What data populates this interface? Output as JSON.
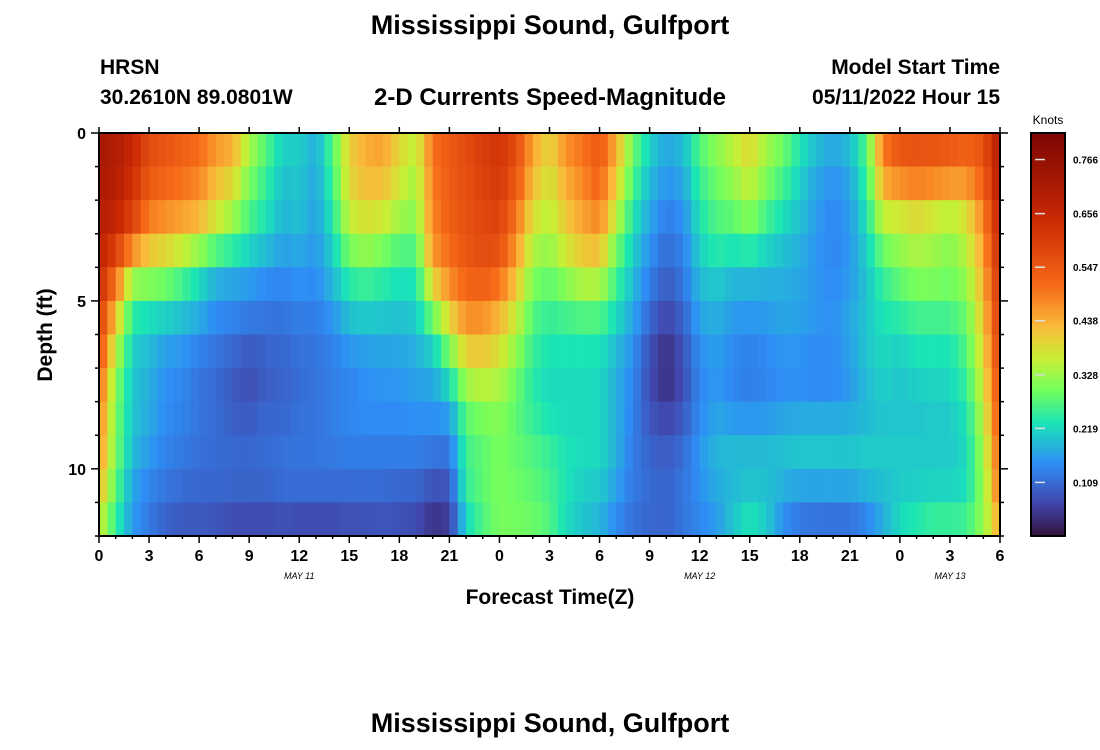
{
  "header": {
    "title": "Mississippi Sound, Gulfport",
    "station_code": "HRSN",
    "station_coords": "30.2610N  89.0801W",
    "subtitle": "2-D Currents Speed-Magnitude",
    "model_label": "Model Start Time",
    "model_time": "05/11/2022 Hour 15",
    "bottom_title": "Mississippi Sound, Gulfport"
  },
  "chart_data": {
    "type": "heatmap",
    "xlabel": "Forecast Time(Z)",
    "ylabel": "Depth (ft)",
    "x_tick_labels": [
      "0",
      "3",
      "6",
      "9",
      "12",
      "15",
      "18",
      "21",
      "0",
      "3",
      "6",
      "9",
      "12",
      "15",
      "18",
      "21",
      "0",
      "3",
      "6"
    ],
    "date_labels": [
      "MAY 11",
      "MAY 12",
      "MAY 13"
    ],
    "y_ticks": [
      0,
      5,
      10
    ],
    "ylim": [
      0,
      12
    ],
    "x_range_hours": [
      0,
      54
    ],
    "colorbar": {
      "label": "Knots",
      "ticks": [
        0.766,
        0.656,
        0.547,
        0.438,
        0.328,
        0.219,
        0.109
      ],
      "range": [
        0.0,
        0.82
      ]
    },
    "hours": [
      0,
      1,
      2,
      3,
      4,
      5,
      6,
      7,
      8,
      9,
      10,
      11,
      12,
      13,
      14,
      15,
      16,
      17,
      18,
      19,
      20,
      21,
      22,
      23,
      24,
      25,
      26,
      27,
      28,
      29,
      30,
      31,
      32,
      33,
      34,
      35,
      36,
      37,
      38,
      39,
      40,
      41,
      42,
      43,
      44,
      45,
      46,
      47,
      48,
      49,
      50,
      51,
      52,
      53,
      54
    ],
    "depths": [
      0,
      1,
      2,
      3,
      4,
      5,
      6,
      7,
      8,
      9,
      10,
      11,
      12
    ],
    "speed_knots": [
      [
        0.72,
        0.7,
        0.66,
        0.58,
        0.56,
        0.54,
        0.52,
        0.48,
        0.45,
        0.35,
        0.28,
        0.22,
        0.22,
        0.18,
        0.28,
        0.4,
        0.44,
        0.46,
        0.4,
        0.36,
        0.5,
        0.55,
        0.58,
        0.6,
        0.62,
        0.58,
        0.45,
        0.4,
        0.48,
        0.5,
        0.55,
        0.45,
        0.3,
        0.22,
        0.18,
        0.2,
        0.28,
        0.32,
        0.36,
        0.4,
        0.34,
        0.3,
        0.24,
        0.2,
        0.18,
        0.2,
        0.28,
        0.5,
        0.56,
        0.56,
        0.55,
        0.54,
        0.53,
        0.56,
        0.7
      ],
      [
        0.72,
        0.7,
        0.64,
        0.56,
        0.54,
        0.52,
        0.5,
        0.44,
        0.42,
        0.32,
        0.26,
        0.2,
        0.2,
        0.17,
        0.26,
        0.4,
        0.44,
        0.44,
        0.38,
        0.34,
        0.5,
        0.54,
        0.56,
        0.6,
        0.62,
        0.56,
        0.44,
        0.38,
        0.46,
        0.5,
        0.54,
        0.42,
        0.28,
        0.2,
        0.16,
        0.18,
        0.26,
        0.3,
        0.34,
        0.38,
        0.32,
        0.28,
        0.22,
        0.18,
        0.16,
        0.18,
        0.26,
        0.48,
        0.54,
        0.55,
        0.55,
        0.54,
        0.52,
        0.55,
        0.7
      ],
      [
        0.7,
        0.68,
        0.62,
        0.52,
        0.5,
        0.48,
        0.46,
        0.4,
        0.36,
        0.28,
        0.24,
        0.19,
        0.2,
        0.17,
        0.25,
        0.38,
        0.4,
        0.4,
        0.36,
        0.32,
        0.48,
        0.54,
        0.56,
        0.58,
        0.6,
        0.52,
        0.4,
        0.36,
        0.42,
        0.46,
        0.5,
        0.38,
        0.25,
        0.18,
        0.14,
        0.16,
        0.24,
        0.28,
        0.3,
        0.34,
        0.28,
        0.24,
        0.2,
        0.16,
        0.14,
        0.16,
        0.24,
        0.4,
        0.4,
        0.42,
        0.4,
        0.38,
        0.4,
        0.5,
        0.68
      ],
      [
        0.68,
        0.64,
        0.56,
        0.46,
        0.44,
        0.42,
        0.4,
        0.34,
        0.3,
        0.25,
        0.22,
        0.18,
        0.19,
        0.16,
        0.22,
        0.34,
        0.36,
        0.34,
        0.3,
        0.3,
        0.48,
        0.52,
        0.56,
        0.58,
        0.58,
        0.48,
        0.36,
        0.34,
        0.4,
        0.44,
        0.46,
        0.32,
        0.22,
        0.16,
        0.12,
        0.14,
        0.22,
        0.26,
        0.26,
        0.28,
        0.24,
        0.21,
        0.19,
        0.16,
        0.14,
        0.16,
        0.22,
        0.32,
        0.34,
        0.36,
        0.34,
        0.32,
        0.36,
        0.46,
        0.66
      ],
      [
        0.66,
        0.55,
        0.38,
        0.36,
        0.34,
        0.3,
        0.24,
        0.2,
        0.19,
        0.18,
        0.16,
        0.15,
        0.16,
        0.15,
        0.2,
        0.26,
        0.28,
        0.26,
        0.24,
        0.24,
        0.44,
        0.5,
        0.54,
        0.56,
        0.54,
        0.44,
        0.32,
        0.3,
        0.34,
        0.38,
        0.38,
        0.27,
        0.2,
        0.14,
        0.1,
        0.13,
        0.2,
        0.22,
        0.2,
        0.2,
        0.19,
        0.18,
        0.17,
        0.15,
        0.14,
        0.15,
        0.2,
        0.26,
        0.3,
        0.32,
        0.32,
        0.3,
        0.34,
        0.44,
        0.64
      ],
      [
        0.62,
        0.45,
        0.26,
        0.25,
        0.24,
        0.22,
        0.2,
        0.16,
        0.15,
        0.14,
        0.13,
        0.13,
        0.14,
        0.14,
        0.17,
        0.22,
        0.23,
        0.22,
        0.21,
        0.22,
        0.34,
        0.44,
        0.5,
        0.5,
        0.46,
        0.38,
        0.28,
        0.26,
        0.28,
        0.3,
        0.3,
        0.24,
        0.18,
        0.12,
        0.08,
        0.11,
        0.18,
        0.19,
        0.17,
        0.17,
        0.17,
        0.18,
        0.17,
        0.16,
        0.15,
        0.17,
        0.2,
        0.24,
        0.26,
        0.28,
        0.28,
        0.28,
        0.3,
        0.42,
        0.62
      ],
      [
        0.58,
        0.38,
        0.22,
        0.2,
        0.18,
        0.17,
        0.15,
        0.13,
        0.12,
        0.11,
        0.11,
        0.11,
        0.12,
        0.12,
        0.14,
        0.17,
        0.18,
        0.18,
        0.18,
        0.19,
        0.24,
        0.34,
        0.44,
        0.44,
        0.4,
        0.34,
        0.26,
        0.24,
        0.24,
        0.24,
        0.24,
        0.2,
        0.16,
        0.09,
        0.05,
        0.09,
        0.16,
        0.17,
        0.15,
        0.14,
        0.15,
        0.16,
        0.16,
        0.15,
        0.15,
        0.17,
        0.2,
        0.22,
        0.22,
        0.24,
        0.24,
        0.24,
        0.28,
        0.4,
        0.6
      ],
      [
        0.54,
        0.32,
        0.2,
        0.18,
        0.15,
        0.14,
        0.12,
        0.11,
        0.09,
        0.07,
        0.09,
        0.1,
        0.11,
        0.12,
        0.13,
        0.14,
        0.15,
        0.16,
        0.16,
        0.17,
        0.18,
        0.26,
        0.36,
        0.38,
        0.36,
        0.3,
        0.24,
        0.22,
        0.22,
        0.22,
        0.22,
        0.18,
        0.14,
        0.07,
        0.03,
        0.07,
        0.14,
        0.16,
        0.14,
        0.13,
        0.14,
        0.15,
        0.15,
        0.14,
        0.14,
        0.16,
        0.2,
        0.22,
        0.2,
        0.22,
        0.22,
        0.22,
        0.26,
        0.38,
        0.58
      ],
      [
        0.5,
        0.3,
        0.2,
        0.18,
        0.15,
        0.14,
        0.12,
        0.11,
        0.09,
        0.08,
        0.1,
        0.1,
        0.11,
        0.12,
        0.13,
        0.14,
        0.15,
        0.15,
        0.15,
        0.16,
        0.16,
        0.18,
        0.3,
        0.32,
        0.32,
        0.28,
        0.24,
        0.22,
        0.22,
        0.22,
        0.22,
        0.18,
        0.14,
        0.08,
        0.05,
        0.08,
        0.14,
        0.16,
        0.14,
        0.13,
        0.14,
        0.15,
        0.15,
        0.15,
        0.15,
        0.16,
        0.18,
        0.2,
        0.2,
        0.2,
        0.21,
        0.21,
        0.24,
        0.36,
        0.56
      ],
      [
        0.48,
        0.3,
        0.2,
        0.17,
        0.14,
        0.13,
        0.12,
        0.11,
        0.1,
        0.1,
        0.11,
        0.11,
        0.12,
        0.12,
        0.13,
        0.14,
        0.14,
        0.14,
        0.14,
        0.14,
        0.14,
        0.14,
        0.26,
        0.28,
        0.3,
        0.28,
        0.26,
        0.24,
        0.22,
        0.22,
        0.22,
        0.18,
        0.13,
        0.09,
        0.08,
        0.1,
        0.15,
        0.18,
        0.18,
        0.18,
        0.18,
        0.19,
        0.2,
        0.2,
        0.2,
        0.2,
        0.2,
        0.2,
        0.2,
        0.2,
        0.2,
        0.2,
        0.22,
        0.34,
        0.54
      ],
      [
        0.46,
        0.3,
        0.18,
        0.15,
        0.13,
        0.12,
        0.11,
        0.11,
        0.11,
        0.11,
        0.11,
        0.12,
        0.12,
        0.12,
        0.12,
        0.12,
        0.12,
        0.12,
        0.12,
        0.12,
        0.1,
        0.1,
        0.26,
        0.28,
        0.3,
        0.29,
        0.28,
        0.26,
        0.24,
        0.22,
        0.22,
        0.18,
        0.13,
        0.11,
        0.1,
        0.12,
        0.16,
        0.19,
        0.2,
        0.2,
        0.2,
        0.2,
        0.2,
        0.2,
        0.2,
        0.2,
        0.21,
        0.21,
        0.21,
        0.21,
        0.21,
        0.21,
        0.22,
        0.32,
        0.52
      ],
      [
        0.4,
        0.26,
        0.16,
        0.13,
        0.11,
        0.1,
        0.1,
        0.1,
        0.09,
        0.09,
        0.09,
        0.1,
        0.1,
        0.1,
        0.1,
        0.1,
        0.1,
        0.1,
        0.09,
        0.09,
        0.06,
        0.07,
        0.24,
        0.28,
        0.3,
        0.29,
        0.28,
        0.26,
        0.22,
        0.2,
        0.19,
        0.15,
        0.12,
        0.11,
        0.1,
        0.12,
        0.14,
        0.16,
        0.18,
        0.2,
        0.19,
        0.16,
        0.14,
        0.14,
        0.14,
        0.14,
        0.16,
        0.18,
        0.2,
        0.21,
        0.22,
        0.22,
        0.23,
        0.32,
        0.5
      ],
      [
        0.34,
        0.24,
        0.16,
        0.12,
        0.09,
        0.08,
        0.08,
        0.07,
        0.06,
        0.06,
        0.06,
        0.06,
        0.05,
        0.05,
        0.05,
        0.06,
        0.06,
        0.07,
        0.07,
        0.06,
        0.03,
        0.04,
        0.2,
        0.26,
        0.3,
        0.3,
        0.3,
        0.28,
        0.22,
        0.2,
        0.18,
        0.14,
        0.11,
        0.1,
        0.1,
        0.12,
        0.14,
        0.16,
        0.22,
        0.26,
        0.22,
        0.14,
        0.11,
        0.1,
        0.1,
        0.1,
        0.12,
        0.18,
        0.24,
        0.26,
        0.28,
        0.28,
        0.28,
        0.32,
        0.4
      ]
    ]
  }
}
